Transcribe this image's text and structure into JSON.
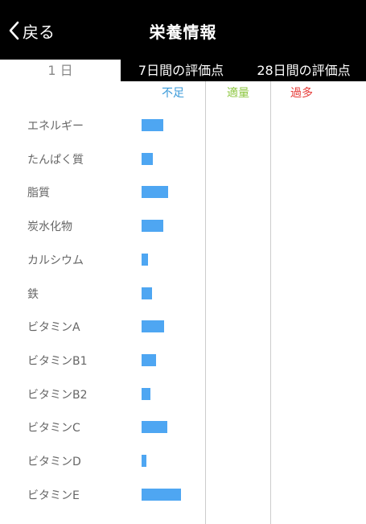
{
  "nav": {
    "back_label": "戻る",
    "title": "栄養情報"
  },
  "tabs": [
    {
      "label": "1 日",
      "active": true
    },
    {
      "label": "7日間の評価点",
      "active": false
    },
    {
      "label": "28日間の評価点",
      "active": false
    }
  ],
  "columns": {
    "deficient": {
      "label": "不足",
      "color": "#3a9ad9"
    },
    "adequate": {
      "label": "適量",
      "color": "#8cc63f"
    },
    "excess": {
      "label": "過多",
      "color": "#e53935"
    }
  },
  "bar_color": "#4ea6f2",
  "nutrients": [
    {
      "label": "エネルギー",
      "level": 0.33
    },
    {
      "label": "たんぱく質",
      "level": 0.17
    },
    {
      "label": "脂質",
      "level": 0.41
    },
    {
      "label": "炭水化物",
      "level": 0.33
    },
    {
      "label": "カルシウム",
      "level": 0.1
    },
    {
      "label": "鉄",
      "level": 0.16
    },
    {
      "label": "ビタミンA",
      "level": 0.35
    },
    {
      "label": "ビタミンB1",
      "level": 0.22
    },
    {
      "label": "ビタミンB2",
      "level": 0.14
    },
    {
      "label": "ビタミンC",
      "level": 0.4
    },
    {
      "label": "ビタミンD",
      "level": 0.08
    },
    {
      "label": "ビタミンE",
      "level": 0.61
    }
  ]
}
